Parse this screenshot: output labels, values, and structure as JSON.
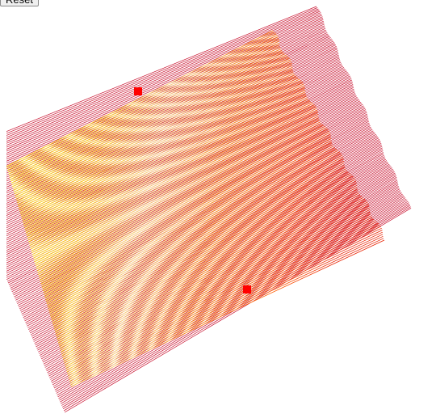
{
  "toolbar": {
    "reset_label": "Reset"
  },
  "colors": {
    "background": "#ffffff",
    "back_layer_line": "#c8102e",
    "front_gradient": [
      "#ffe800",
      "#ffd400",
      "#ffe680",
      "#ff9a10",
      "#ff5a00",
      "#e82000"
    ],
    "handle": "#ff0000"
  },
  "icons": {
    "handle_a": "square-handle-icon",
    "handle_b": "square-handle-icon"
  }
}
